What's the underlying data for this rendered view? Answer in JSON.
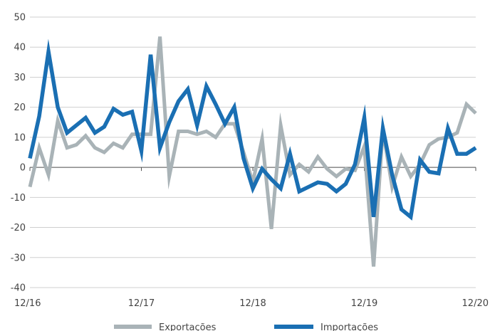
{
  "chart_data": {
    "type": "line",
    "x_tick_labels": [
      "12/16",
      "12/17",
      "12/18",
      "12/19",
      "12/20"
    ],
    "y_ticks": [
      50,
      40,
      30,
      20,
      10,
      0,
      -10,
      -20,
      -30,
      -40
    ],
    "ylim": [
      -40,
      50
    ],
    "xlim": [
      0,
      48
    ],
    "grid": "horizontal",
    "legend_position": "bottom",
    "series": [
      {
        "name": "Exportações",
        "color": "#a9b3b7",
        "values": [
          -6.5,
          6.5,
          -2.5,
          15.5,
          6.5,
          7.5,
          10.5,
          6.5,
          5,
          8,
          6.5,
          11,
          11,
          11,
          43.5,
          -3,
          12,
          12,
          11,
          12,
          10,
          14.5,
          14.5,
          5,
          -5,
          9.5,
          -20.5,
          14,
          -2.5,
          1,
          -1.5,
          3.5,
          -0.5,
          -3,
          -0.5,
          -1,
          7,
          -33,
          12.5,
          -6.5,
          3.5,
          -3,
          1,
          7.5,
          9.5,
          10,
          11.5,
          21,
          18
        ]
      },
      {
        "name": "Importações",
        "color": "#1a6fb3",
        "values": [
          3,
          17,
          38.5,
          20,
          11.5,
          14,
          16.5,
          11.5,
          13.5,
          19.5,
          17.5,
          18.5,
          5.5,
          37.5,
          6.5,
          15,
          22,
          26,
          14,
          27,
          21,
          14.5,
          20,
          3,
          -7,
          -0.5,
          -4,
          -7,
          4.5,
          -8,
          -6.5,
          -5,
          -5.5,
          -8,
          -5.5,
          1,
          16.5,
          -16.5,
          13,
          -2.5,
          -14,
          -16.5,
          2.5,
          -1.5,
          -2,
          13,
          4.5,
          4.5,
          6.5
        ]
      }
    ]
  }
}
